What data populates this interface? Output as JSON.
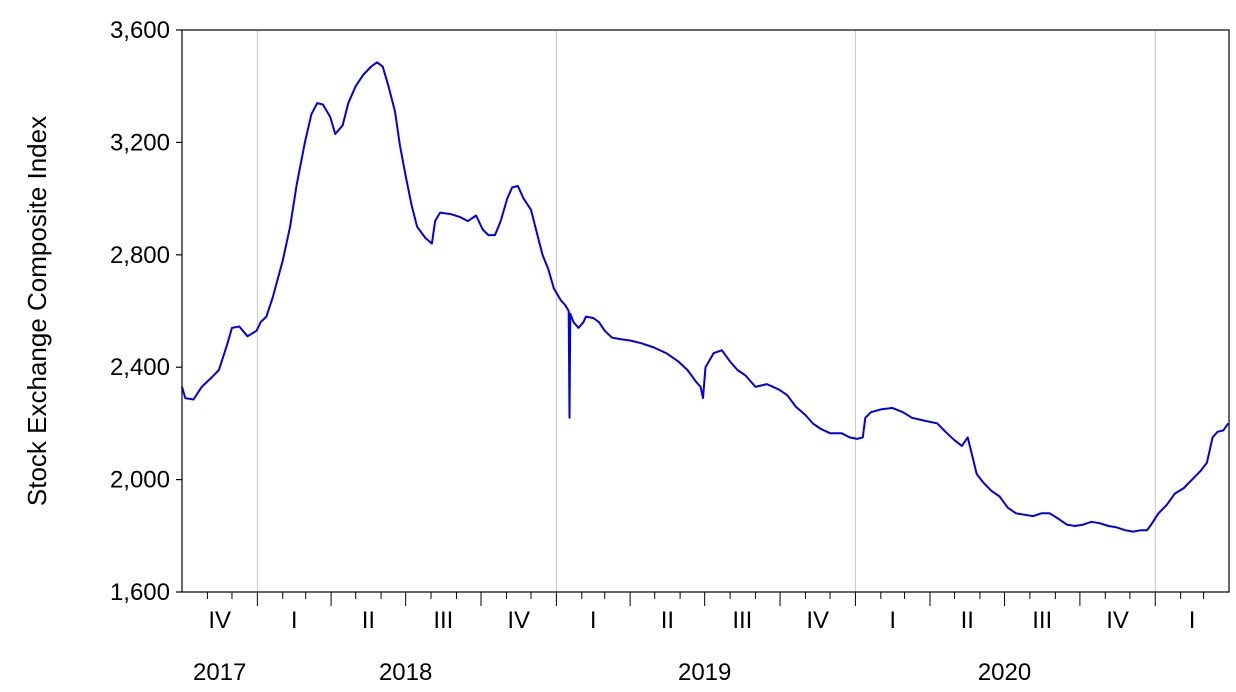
{
  "chart_data": {
    "type": "line",
    "title": "",
    "xlabel": "",
    "ylabel": "Stock Exchange Composite Index",
    "ylim": [
      1600,
      3600
    ],
    "y_ticks": [
      "1,600",
      "2,000",
      "2,400",
      "2,800",
      "3,200",
      "3,600"
    ],
    "y_tick_values": [
      1600,
      2000,
      2400,
      2800,
      3200,
      3600
    ],
    "x_range": [
      "2017-10-01",
      "2021-03-31"
    ],
    "quarter_labels": [
      "IV",
      "I",
      "II",
      "III",
      "IV",
      "I",
      "II",
      "III",
      "IV",
      "I",
      "II",
      "III",
      "IV",
      "I"
    ],
    "year_labels": [
      "2017",
      "2018",
      "2019",
      "2020"
    ],
    "grid": "vertical lines at year boundaries",
    "line_color": "#0000e6",
    "series": [
      {
        "values": [
          [
            "2017-10-01",
            2330
          ],
          [
            "2017-10-05",
            2290
          ],
          [
            "2017-10-15",
            2285
          ],
          [
            "2017-10-25",
            2330
          ],
          [
            "2017-11-05",
            2360
          ],
          [
            "2017-11-15",
            2390
          ],
          [
            "2017-11-25",
            2480
          ],
          [
            "2017-12-01",
            2540
          ],
          [
            "2017-12-10",
            2545
          ],
          [
            "2017-12-20",
            2510
          ],
          [
            "2017-12-31",
            2530
          ],
          [
            "2018-01-05",
            2560
          ],
          [
            "2018-01-12",
            2580
          ],
          [
            "2018-01-20",
            2650
          ],
          [
            "2018-02-01",
            2780
          ],
          [
            "2018-02-10",
            2900
          ],
          [
            "2018-02-18",
            3050
          ],
          [
            "2018-02-28",
            3200
          ],
          [
            "2018-03-08",
            3300
          ],
          [
            "2018-03-15",
            3340
          ],
          [
            "2018-03-22",
            3335
          ],
          [
            "2018-03-31",
            3290
          ],
          [
            "2018-04-06",
            3230
          ],
          [
            "2018-04-15",
            3260
          ],
          [
            "2018-04-22",
            3340
          ],
          [
            "2018-05-01",
            3400
          ],
          [
            "2018-05-10",
            3440
          ],
          [
            "2018-05-20",
            3470
          ],
          [
            "2018-05-27",
            3485
          ],
          [
            "2018-06-03",
            3470
          ],
          [
            "2018-06-10",
            3400
          ],
          [
            "2018-06-18",
            3310
          ],
          [
            "2018-06-24",
            3190
          ],
          [
            "2018-07-01",
            3080
          ],
          [
            "2018-07-08",
            2980
          ],
          [
            "2018-07-15",
            2900
          ],
          [
            "2018-07-25",
            2860
          ],
          [
            "2018-08-02",
            2840
          ],
          [
            "2018-08-06",
            2920
          ],
          [
            "2018-08-12",
            2950
          ],
          [
            "2018-08-25",
            2945
          ],
          [
            "2018-09-05",
            2935
          ],
          [
            "2018-09-15",
            2920
          ],
          [
            "2018-09-25",
            2940
          ],
          [
            "2018-10-03",
            2890
          ],
          [
            "2018-10-10",
            2870
          ],
          [
            "2018-10-18",
            2870
          ],
          [
            "2018-10-25",
            2920
          ],
          [
            "2018-11-02",
            3000
          ],
          [
            "2018-11-08",
            3040
          ],
          [
            "2018-11-15",
            3045
          ],
          [
            "2018-11-22",
            3000
          ],
          [
            "2018-12-01",
            2960
          ],
          [
            "2018-12-08",
            2880
          ],
          [
            "2018-12-15",
            2800
          ],
          [
            "2018-12-22",
            2750
          ],
          [
            "2018-12-29",
            2680
          ],
          [
            "2019-01-06",
            2640
          ],
          [
            "2019-01-12",
            2620
          ],
          [
            "2019-01-16",
            2600
          ],
          [
            "2019-01-17",
            2220
          ],
          [
            "2019-01-18",
            2590
          ],
          [
            "2019-01-22",
            2560
          ],
          [
            "2019-01-28",
            2540
          ],
          [
            "2019-02-03",
            2560
          ],
          [
            "2019-02-06",
            2580
          ],
          [
            "2019-02-15",
            2575
          ],
          [
            "2019-02-22",
            2560
          ],
          [
            "2019-03-01",
            2530
          ],
          [
            "2019-03-10",
            2505
          ],
          [
            "2019-03-20",
            2500
          ],
          [
            "2019-04-01",
            2495
          ],
          [
            "2019-04-15",
            2485
          ],
          [
            "2019-04-30",
            2470
          ],
          [
            "2019-05-15",
            2450
          ],
          [
            "2019-05-30",
            2420
          ],
          [
            "2019-06-10",
            2390
          ],
          [
            "2019-06-20",
            2350
          ],
          [
            "2019-06-26",
            2330
          ],
          [
            "2019-06-29",
            2290
          ],
          [
            "2019-07-02",
            2400
          ],
          [
            "2019-07-12",
            2450
          ],
          [
            "2019-07-22",
            2460
          ],
          [
            "2019-08-01",
            2420
          ],
          [
            "2019-08-10",
            2390
          ],
          [
            "2019-08-20",
            2370
          ],
          [
            "2019-09-01",
            2330
          ],
          [
            "2019-09-15",
            2340
          ],
          [
            "2019-09-30",
            2320
          ],
          [
            "2019-10-10",
            2300
          ],
          [
            "2019-10-20",
            2260
          ],
          [
            "2019-11-01",
            2230
          ],
          [
            "2019-11-10",
            2200
          ],
          [
            "2019-11-20",
            2180
          ],
          [
            "2019-12-01",
            2165
          ],
          [
            "2019-12-15",
            2165
          ],
          [
            "2019-12-25",
            2150
          ],
          [
            "2020-01-03",
            2145
          ],
          [
            "2020-01-10",
            2150
          ],
          [
            "2020-01-13",
            2220
          ],
          [
            "2020-01-20",
            2240
          ],
          [
            "2020-02-01",
            2250
          ],
          [
            "2020-02-15",
            2255
          ],
          [
            "2020-02-28",
            2240
          ],
          [
            "2020-03-10",
            2220
          ],
          [
            "2020-03-25",
            2210
          ],
          [
            "2020-04-10",
            2200
          ],
          [
            "2020-04-20",
            2170
          ],
          [
            "2020-05-01",
            2140
          ],
          [
            "2020-05-10",
            2120
          ],
          [
            "2020-05-17",
            2150
          ],
          [
            "2020-05-23",
            2080
          ],
          [
            "2020-05-28",
            2020
          ],
          [
            "2020-06-05",
            1990
          ],
          [
            "2020-06-15",
            1960
          ],
          [
            "2020-06-25",
            1940
          ],
          [
            "2020-07-05",
            1900
          ],
          [
            "2020-07-15",
            1880
          ],
          [
            "2020-07-25",
            1875
          ],
          [
            "2020-08-05",
            1870
          ],
          [
            "2020-08-15",
            1880
          ],
          [
            "2020-08-25",
            1880
          ],
          [
            "2020-09-05",
            1860
          ],
          [
            "2020-09-15",
            1840
          ],
          [
            "2020-09-25",
            1835
          ],
          [
            "2020-10-05",
            1840
          ],
          [
            "2020-10-15",
            1850
          ],
          [
            "2020-10-25",
            1845
          ],
          [
            "2020-11-05",
            1835
          ],
          [
            "2020-11-15",
            1830
          ],
          [
            "2020-11-25",
            1820
          ],
          [
            "2020-12-05",
            1815
          ],
          [
            "2020-12-15",
            1820
          ],
          [
            "2020-12-22",
            1820
          ],
          [
            "2020-12-27",
            1840
          ],
          [
            "2021-01-05",
            1880
          ],
          [
            "2021-01-15",
            1910
          ],
          [
            "2021-01-25",
            1950
          ],
          [
            "2021-02-05",
            1970
          ],
          [
            "2021-02-15",
            2000
          ],
          [
            "2021-02-25",
            2030
          ],
          [
            "2021-03-05",
            2060
          ],
          [
            "2021-03-12",
            2150
          ],
          [
            "2021-03-18",
            2170
          ],
          [
            "2021-03-25",
            2175
          ],
          [
            "2021-03-31",
            2200
          ]
        ]
      }
    ]
  }
}
